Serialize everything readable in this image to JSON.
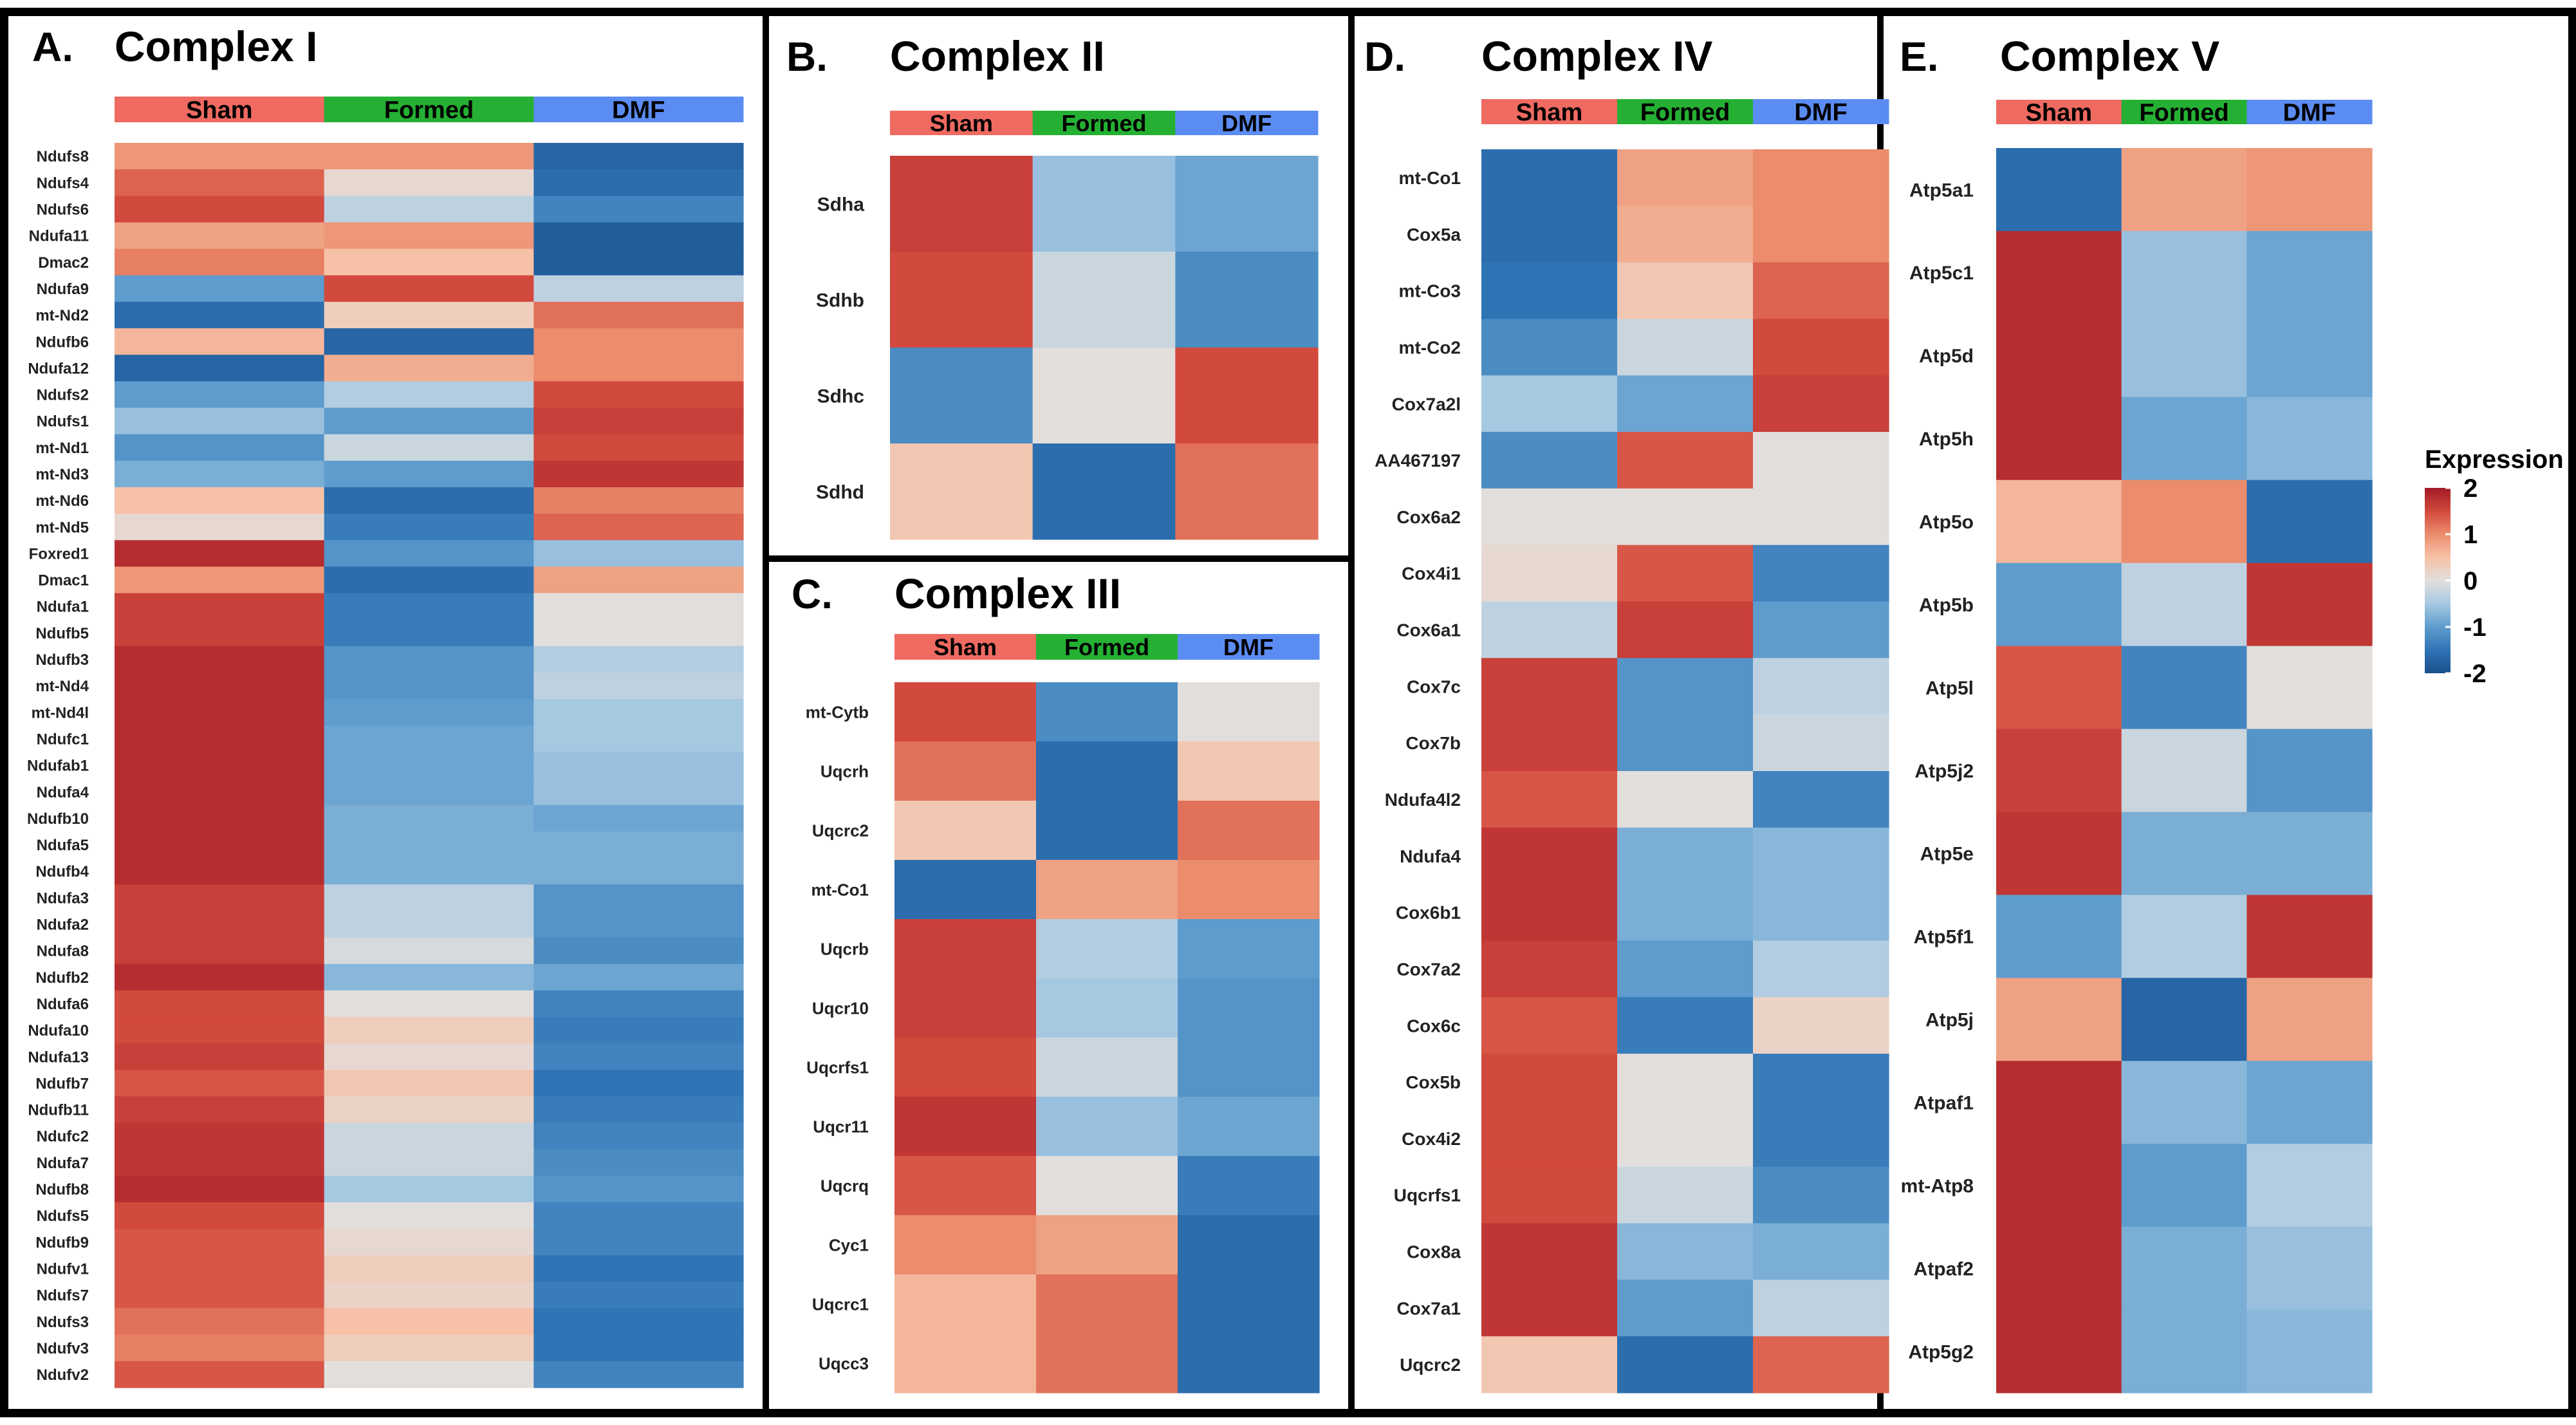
{
  "figure": {
    "colors": {
      "sham": "#ef6a61",
      "formed": "#25b034",
      "dmf": "#5b8cf2",
      "border": "#000000",
      "low": "#2166ac",
      "mid": "#e4e0dc",
      "high": "#b2182b"
    },
    "legend": {
      "title": "Expression",
      "ticks": [
        "2",
        "1",
        "0",
        "-1",
        "-2"
      ],
      "values": [
        2,
        1,
        0,
        -1,
        -2
      ]
    },
    "groups": [
      "Sham",
      "Formed",
      "DMF"
    ]
  },
  "chart_data": [
    {
      "type": "heatmap",
      "panel": "A.",
      "title": "Complex I",
      "columns": [
        "Sham",
        "Formed",
        "DMF"
      ],
      "rows": [
        "Ndufs8",
        "Ndufs4",
        "Ndufs6",
        "Ndufa11",
        "Dmac2",
        "Ndufa9",
        "mt-Nd2",
        "Ndufb6",
        "Ndufa12",
        "Ndufs2",
        "Ndufs1",
        "mt-Nd1",
        "mt-Nd3",
        "mt-Nd6",
        "mt-Nd5",
        "Foxred1",
        "Dmac1",
        "Ndufa1",
        "Ndufb5",
        "Ndufb3",
        "mt-Nd4",
        "mt-Nd4l",
        "Ndufc1",
        "Ndufab1",
        "Ndufa4",
        "Ndufb10",
        "Ndufa5",
        "Ndufb4",
        "Ndufa3",
        "Ndufa2",
        "Ndufa8",
        "Ndufb2",
        "Ndufa6",
        "Ndufa10",
        "Ndufa13",
        "Ndufb7",
        "Ndufb11",
        "Ndufc2",
        "Ndufa7",
        "Ndufb8",
        "Ndufs5",
        "Ndufb9",
        "Ndufv1",
        "Ndufs7",
        "Ndufs3",
        "Ndufv3",
        "Ndufv2"
      ],
      "values": [
        [
          0.9,
          0.9,
          -1.7
        ],
        [
          1.3,
          0.1,
          -1.6
        ],
        [
          1.5,
          -0.3,
          -1.3
        ],
        [
          0.8,
          0.9,
          -1.8
        ],
        [
          1.1,
          0.5,
          -1.8
        ],
        [
          -1,
          1.5,
          -0.3
        ],
        [
          -1.6,
          0.3,
          1.2
        ],
        [
          0.6,
          -1.7,
          1
        ],
        [
          -1.7,
          0.7,
          1
        ],
        [
          -1,
          -0.4,
          1.5
        ],
        [
          -0.6,
          -1,
          1.6
        ],
        [
          -1.1,
          -0.2,
          1.5
        ],
        [
          -0.8,
          -1,
          1.7
        ],
        [
          0.5,
          -1.6,
          1.1
        ],
        [
          0.1,
          -1.4,
          1.3
        ],
        [
          1.8,
          -1.1,
          -0.6
        ],
        [
          0.9,
          -1.6,
          0.8
        ],
        [
          1.6,
          -1.4,
          0
        ],
        [
          1.6,
          -1.4,
          0
        ],
        [
          1.8,
          -1.1,
          -0.4
        ],
        [
          1.8,
          -1.1,
          -0.3
        ],
        [
          1.8,
          -1,
          -0.5
        ],
        [
          1.8,
          -0.9,
          -0.5
        ],
        [
          1.8,
          -0.9,
          -0.6
        ],
        [
          1.8,
          -0.9,
          -0.6
        ],
        [
          1.8,
          -0.8,
          -0.9
        ],
        [
          1.8,
          -0.8,
          -0.8
        ],
        [
          1.8,
          -0.8,
          -0.8
        ],
        [
          1.6,
          -0.3,
          -1.1
        ],
        [
          1.6,
          -0.3,
          -1.1
        ],
        [
          1.6,
          -0.1,
          -1.2
        ],
        [
          1.8,
          -0.7,
          -0.9
        ],
        [
          1.5,
          0,
          -1.3
        ],
        [
          1.5,
          0.3,
          -1.4
        ],
        [
          1.6,
          0.1,
          -1.3
        ],
        [
          1.4,
          0.4,
          -1.5
        ],
        [
          1.6,
          0.2,
          -1.4
        ],
        [
          1.7,
          -0.2,
          -1.3
        ],
        [
          1.7,
          -0.2,
          -1.2
        ],
        [
          1.8,
          -0.5,
          -1.1
        ],
        [
          1.5,
          0,
          -1.3
        ],
        [
          1.4,
          0.1,
          -1.3
        ],
        [
          1.4,
          0.3,
          -1.5
        ],
        [
          1.4,
          0.2,
          -1.4
        ],
        [
          1.2,
          0.5,
          -1.5
        ],
        [
          1.1,
          0.3,
          -1.5
        ],
        [
          1.4,
          0,
          -1.3
        ]
      ]
    },
    {
      "type": "heatmap",
      "panel": "B.",
      "title": "Complex II",
      "columns": [
        "Sham",
        "Formed",
        "DMF"
      ],
      "rows": [
        "Sdha",
        "Sdhb",
        "Sdhc",
        "Sdhd"
      ],
      "values": [
        [
          1.6,
          -0.6,
          -0.9
        ],
        [
          1.5,
          -0.2,
          -1.2
        ],
        [
          -1.2,
          0,
          1.5
        ],
        [
          0.4,
          -1.6,
          1.2
        ]
      ]
    },
    {
      "type": "heatmap",
      "panel": "C.",
      "title": "Complex III",
      "columns": [
        "Sham",
        "Formed",
        "DMF"
      ],
      "rows": [
        "mt-Cytb",
        "Uqcrh",
        "Uqcrc2",
        "mt-Co1",
        "Uqcrb",
        "Uqcr10",
        "Uqcrfs1",
        "Uqcr11",
        "Uqcrq",
        "Cyc1",
        "Uqcrc1",
        "Uqcc3"
      ],
      "values": [
        [
          1.5,
          -1.2,
          0
        ],
        [
          1.2,
          -1.6,
          0.4
        ],
        [
          0.4,
          -1.6,
          1.2
        ],
        [
          -1.6,
          0.8,
          1
        ],
        [
          1.6,
          -0.4,
          -1
        ],
        [
          1.6,
          -0.5,
          -1.1
        ],
        [
          1.5,
          -0.2,
          -1.1
        ],
        [
          1.7,
          -0.6,
          -0.9
        ],
        [
          1.4,
          0,
          -1.4
        ],
        [
          1,
          0.8,
          -1.6
        ],
        [
          0.6,
          1.2,
          -1.6
        ],
        [
          0.6,
          1.2,
          -1.6
        ]
      ]
    },
    {
      "type": "heatmap",
      "panel": "D.",
      "title": "Complex IV",
      "columns": [
        "Sham",
        "Formed",
        "DMF"
      ],
      "rows": [
        "mt-Co1",
        "Cox5a",
        "mt-Co3",
        "mt-Co2",
        "Cox7a2l",
        "AA467197",
        "Cox6a2",
        "Cox4i1",
        "Cox6a1",
        "Cox7c",
        "Cox7b",
        "Ndufa4l2",
        "Ndufa4",
        "Cox6b1",
        "Cox7a2",
        "Cox6c",
        "Cox5b",
        "Cox4i2",
        "Uqcrfs1",
        "Cox8a",
        "Cox7a1",
        "Uqcrc2"
      ],
      "values": [
        [
          -1.6,
          0.8,
          1
        ],
        [
          -1.6,
          0.7,
          1
        ],
        [
          -1.5,
          0.4,
          1.3
        ],
        [
          -1.2,
          -0.2,
          1.5
        ],
        [
          -0.5,
          -0.9,
          1.6
        ],
        [
          -1.2,
          1.4,
          0
        ],
        [
          0,
          0,
          0
        ],
        [
          0.1,
          1.4,
          -1.3
        ],
        [
          -0.3,
          1.6,
          -1
        ],
        [
          1.6,
          -1.1,
          -0.3
        ],
        [
          1.6,
          -1.1,
          -0.2
        ],
        [
          1.4,
          0,
          -1.3
        ],
        [
          1.7,
          -0.8,
          -0.7
        ],
        [
          1.7,
          -0.8,
          -0.7
        ],
        [
          1.6,
          -1,
          -0.4
        ],
        [
          1.4,
          -1.4,
          0.2
        ],
        [
          1.5,
          0,
          -1.4
        ],
        [
          1.5,
          0,
          -1.4
        ],
        [
          1.5,
          -0.2,
          -1.2
        ],
        [
          1.7,
          -0.7,
          -0.8
        ],
        [
          1.7,
          -1,
          -0.3
        ],
        [
          0.4,
          -1.6,
          1.3
        ]
      ]
    },
    {
      "type": "heatmap",
      "panel": "E.",
      "title": "Complex V",
      "columns": [
        "Sham",
        "Formed",
        "DMF"
      ],
      "rows": [
        "Atp5a1",
        "Atp5c1",
        "Atp5d",
        "Atp5h",
        "Atp5o",
        "Atp5b",
        "Atp5l",
        "Atp5j2",
        "Atp5e",
        "Atp5f1",
        "Atp5j",
        "Atpaf1",
        "mt-Atp8",
        "Atpaf2",
        "Atp5g2"
      ],
      "values": [
        [
          -1.6,
          0.8,
          0.9
        ],
        [
          1.8,
          -0.6,
          -0.9
        ],
        [
          1.8,
          -0.6,
          -0.9
        ],
        [
          1.8,
          -0.9,
          -0.7
        ],
        [
          0.6,
          1,
          -1.6
        ],
        [
          -1,
          -0.3,
          1.7
        ],
        [
          1.4,
          -1.3,
          0
        ],
        [
          1.6,
          -0.2,
          -1.1
        ],
        [
          1.7,
          -0.8,
          -0.8
        ],
        [
          -1,
          -0.4,
          1.7
        ],
        [
          0.8,
          -1.7,
          0.8
        ],
        [
          1.8,
          -0.7,
          -0.9
        ],
        [
          1.8,
          -1,
          -0.4
        ],
        [
          1.8,
          -0.8,
          -0.6
        ],
        [
          1.8,
          -0.8,
          -0.7
        ]
      ]
    }
  ]
}
